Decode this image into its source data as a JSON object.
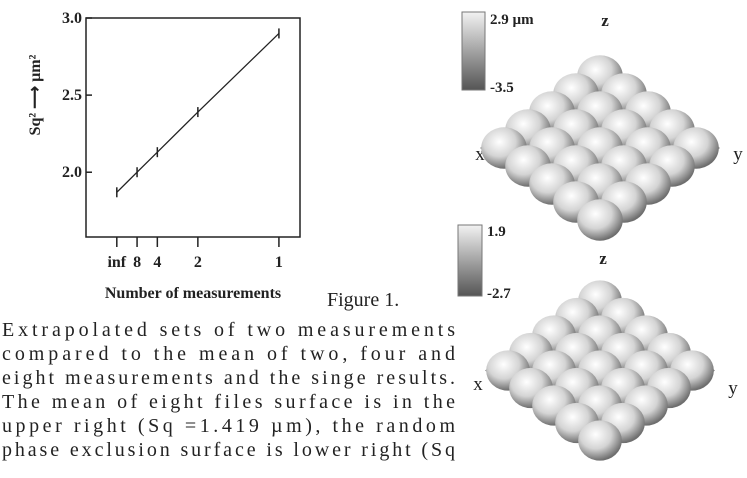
{
  "chart_data": {
    "type": "line",
    "y_label": "Sq² ⟶ µm²",
    "x_label": "Number of measurements",
    "x": [
      0,
      0.125,
      0.25,
      0.5,
      1
    ],
    "series": [
      {
        "color": "#222222",
        "values": [
          1.87,
          2.0,
          2.13,
          2.39,
          2.9
        ]
      }
    ],
    "xlim": [
      -0.19,
      1.13
    ],
    "xticks": [
      {
        "value": 0,
        "label": "inf"
      },
      {
        "value": 0.125,
        "label": "8"
      },
      {
        "value": 0.25,
        "label": "4"
      },
      {
        "value": 0.5,
        "label": "2"
      },
      1
    ],
    "ylim": [
      1.58,
      3.0
    ],
    "yticks": [
      {
        "value": 2.0,
        "label": "2.0"
      },
      2.5,
      {
        "value": 3.0,
        "label": "3.0"
      }
    ]
  },
  "caption": {
    "lines": [
      "Figure 1.",
      "Extrapolated sets of two measurements",
      "compared to the mean of two, four and",
      "eight measurements and the singe results.",
      "The mean of eight files surface is in the",
      "upper right (Sq =1.419 µm), the random",
      "phase exclusion surface is lower right (Sq"
    ]
  },
  "surfaces": [
    {
      "max": "2.9 µm",
      "min": "-3.5",
      "z": "z",
      "x": "x",
      "y": "y"
    },
    {
      "max": "1.9",
      "min": "-2.7",
      "z": "z",
      "x": "x",
      "y": "y"
    }
  ]
}
